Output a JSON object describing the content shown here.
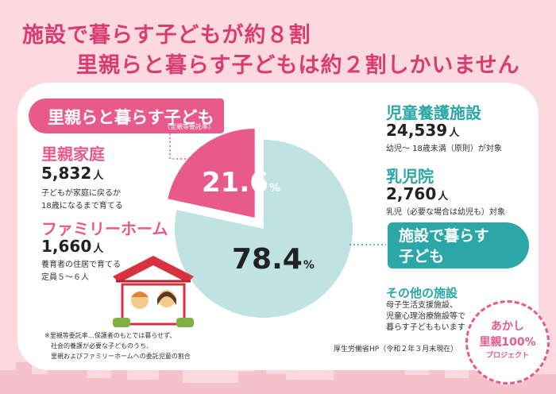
{
  "title": {
    "line1": "施設で暮らす子どもが約８割",
    "line2": "里親らと暮らす子どもは約２割しかいません"
  },
  "left": {
    "badge": "里親らと暮らす子ども",
    "badge_note": "（里親等委託率）",
    "satooya": {
      "label": "里親家庭",
      "number": "5,832",
      "unit": "人",
      "desc1": "子どもが家庭に戻るか",
      "desc2": "18歳になるまで育てる"
    },
    "family_home": {
      "label": "ファミリーホーム",
      "number": "1,660",
      "unit": "人",
      "desc1": "養育者の住居で育てる",
      "desc2": "定員５～６人"
    }
  },
  "right": {
    "jidou": {
      "label": "児童養護施設",
      "number": "24,539",
      "unit": "人",
      "desc": "幼児～ 18歳未満（原則）が対象"
    },
    "nyujiin": {
      "label": "乳児院",
      "number": "2,760",
      "unit": "人",
      "desc": "乳児（必要な場合は幼児も）対象"
    },
    "badge_line1": "施設で暮らす",
    "badge_line2": "子ども",
    "other": {
      "label": "その他の施設",
      "desc1": "母子生活支援施設、",
      "desc2": "児童心理治療施設等で",
      "desc3": "暮らす子どももいます"
    }
  },
  "chart_data": {
    "type": "pie",
    "categories": [
      "里親らと暮らす子ども",
      "施設で暮らす子ども"
    ],
    "values": [
      21.6,
      78.4
    ],
    "value_labels": [
      "21.6",
      "78.4"
    ],
    "unit": "%",
    "colors": [
      "#e85a8a",
      "#bfe3e2"
    ]
  },
  "footnote": {
    "line1": "※里親等委託率…保護者のもとでは暮らせず、",
    "line2": "社会的養護が必要な子どものうち、",
    "line3": "里親およびファミリーホームへの委託児童の割合"
  },
  "source": "厚生労働省HP（令和２年３月末現在）",
  "roundel": {
    "line1": "あかし",
    "line2": "里親100%",
    "line3": "プロジェクト"
  },
  "colors": {
    "background": "#fbd9df",
    "accent_pink": "#e85a8a",
    "title_pink": "#d93c72",
    "accent_teal": "#2aa7a6",
    "pie_teal": "#bfe3e2"
  }
}
